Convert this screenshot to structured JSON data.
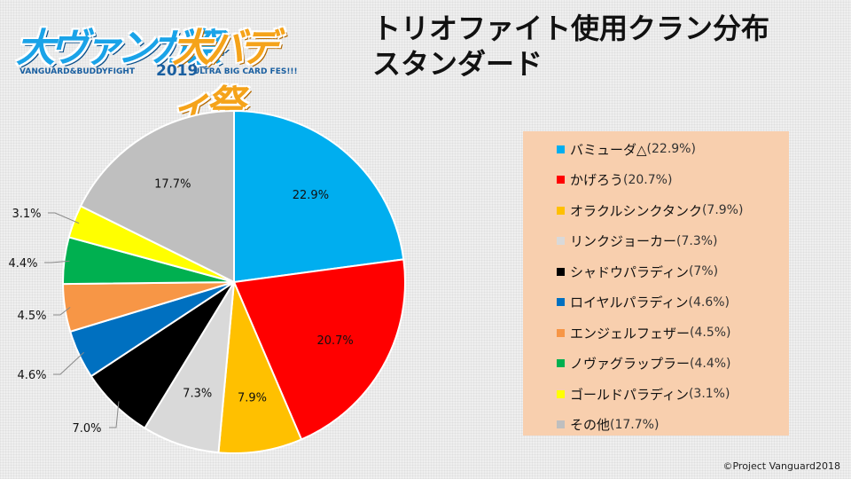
{
  "logo": {
    "part1": "大ヴァンガ祭",
    "part2": "大バディ祭",
    "sub1": "VANGUARD&BUDDYFIGHT",
    "year": "2019",
    "sub2": "ULTRA BIG CARD FES!!!"
  },
  "title": {
    "line1": "トリオファイト使用クラン分布",
    "line2": "スタンダード"
  },
  "copyright": "©Project Vanguard2018",
  "chart_data": {
    "type": "pie",
    "title": "トリオファイト使用クラン分布 スタンダード",
    "slices": [
      {
        "name": "バミューダ△",
        "value": 22.9,
        "label": "22.9%",
        "legend_pct": "(22.9%)",
        "color": "#00aeef"
      },
      {
        "name": "かげろう",
        "value": 20.7,
        "label": "20.7%",
        "legend_pct": "(20.7%)",
        "color": "#ff0000"
      },
      {
        "name": "オラクルシンクタンク",
        "value": 7.9,
        "label": "7.9%",
        "legend_pct": "(7.9%)",
        "color": "#ffc000"
      },
      {
        "name": "リンクジョーカー",
        "value": 7.3,
        "label": "7.3%",
        "legend_pct": "(7.3%)",
        "color": "#d9d9d9"
      },
      {
        "name": "シャドウパラディン",
        "value": 7.0,
        "label": "7.0%",
        "legend_pct": "(7%)",
        "color": "#000000"
      },
      {
        "name": "ロイヤルパラディン",
        "value": 4.6,
        "label": "4.6%",
        "legend_pct": "(4.6%)",
        "color": "#0070c0"
      },
      {
        "name": "エンジェルフェザー",
        "value": 4.5,
        "label": "4.5%",
        "legend_pct": "(4.5%)",
        "color": "#f79646"
      },
      {
        "name": "ノヴァグラップラー",
        "value": 4.4,
        "label": "4.4%",
        "legend_pct": "(4.4%)",
        "color": "#00b050"
      },
      {
        "name": "ゴールドパラディン",
        "value": 3.1,
        "label": "3.1%",
        "legend_pct": "(3.1%)",
        "color": "#ffff00"
      },
      {
        "name": "その他",
        "value": 17.7,
        "label": "17.7%",
        "legend_pct": "(17.7%)",
        "color": "#bfbfbf"
      }
    ],
    "legend_position": "right",
    "label_style": [
      "inside",
      "inside",
      "inside",
      "inside",
      "outside",
      "outside",
      "outside",
      "outside",
      "outside",
      "inside"
    ]
  }
}
